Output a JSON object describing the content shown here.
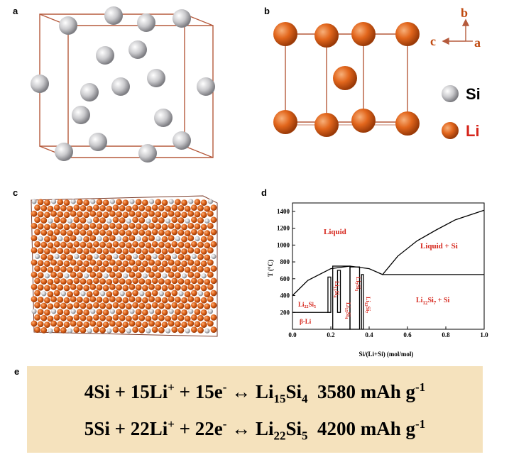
{
  "panels": {
    "a": "a",
    "b": "b",
    "c": "c",
    "d": "d",
    "e": "e"
  },
  "axes_indicator": {
    "b": "b",
    "c": "c",
    "a": "a"
  },
  "legend": {
    "si": "Si",
    "li": "Li"
  },
  "colors": {
    "si": "#c9c9cc",
    "li": "#e2661c",
    "cell_edge": "#b55a3c",
    "phase_label": "#d6261c",
    "equation_bg": "#f5e2bd"
  },
  "phase_diagram": {
    "xlabel": "Si/(Li+Si) (mol/mol)",
    "ylabel": "T (°C)",
    "xticks": [
      "0.0",
      "0.2",
      "0.4",
      "0.6",
      "0.8",
      "1.0"
    ],
    "yticks": [
      "200",
      "400",
      "600",
      "800",
      "1000",
      "1200",
      "1400"
    ],
    "xlim": [
      0,
      1
    ],
    "ylim": [
      0,
      1500
    ],
    "regions": {
      "liquid": "Liquid",
      "liquid_si": "Liquid + Si",
      "li12si7_si": "Li12Si7 + Si",
      "beta_li": "β-Li"
    },
    "compounds": {
      "li22si5": {
        "base1": "Li",
        "sub1": "22",
        "base2": "Si",
        "sub2": "5"
      },
      "li13si4": {
        "base1": "Li",
        "sub1": "13",
        "base2": "Si",
        "sub2": "4"
      },
      "li15si4": {
        "base1": "Li",
        "sub1": "15",
        "base2": "Si",
        "sub2": "4"
      },
      "li7si3": {
        "base1": "Li",
        "sub1": "7",
        "base2": "Si",
        "sub2": "3"
      },
      "li12si7": {
        "base1": "Li",
        "sub1": "12",
        "base2": "Si",
        "sub2": "7"
      }
    },
    "liquidus_points": [
      [
        0.0,
        400
      ],
      [
        0.08,
        580
      ],
      [
        0.2,
        720
      ],
      [
        0.3,
        750
      ],
      [
        0.4,
        720
      ],
      [
        0.47,
        650
      ],
      [
        0.55,
        870
      ],
      [
        0.65,
        1050
      ],
      [
        0.75,
        1180
      ],
      [
        0.85,
        1300
      ],
      [
        1.0,
        1414
      ]
    ],
    "eutectic_T": 650
  },
  "equations": {
    "eq1": {
      "left": "4Si + 15Li",
      "sup1": "+",
      "mid": " + 15e",
      "sup2": "-",
      "arrow": " ↔ ",
      "p1": "Li",
      "s1": "15",
      "p2": "Si",
      "s2": "4",
      "capacity": "3580 mAh g",
      "sup3": "-1"
    },
    "eq2": {
      "left": "5Si + 22Li",
      "sup1": "+",
      "mid": " + 22e",
      "sup2": "-",
      "arrow": " ↔ ",
      "p1": "Li",
      "s1": "22",
      "p2": "Si",
      "s2": "5",
      "capacity": "4200 mAh g",
      "sup3": "-1"
    }
  }
}
